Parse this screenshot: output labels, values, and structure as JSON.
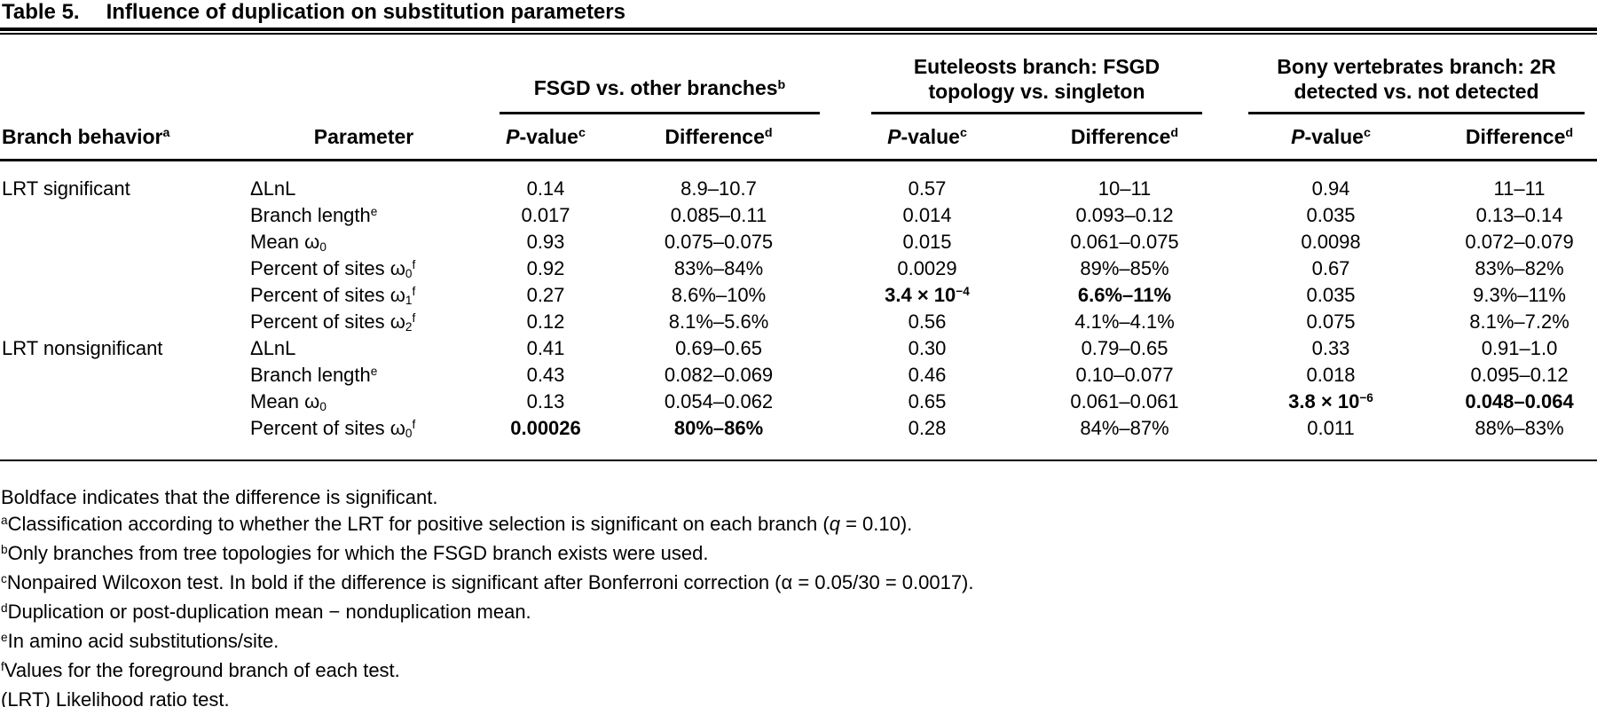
{
  "title": {
    "label": "Table 5.",
    "text": "Influence of duplication on substitution parameters"
  },
  "header": {
    "col1": [
      [
        "t",
        "Branch behavior"
      ],
      [
        "sup",
        "a"
      ]
    ],
    "col2": [
      [
        "t",
        "Parameter"
      ]
    ],
    "groups": [
      {
        "lines": [
          [
            [
              "t",
              "FSGD vs. other branches"
            ],
            [
              "sup",
              "b"
            ]
          ]
        ]
      },
      {
        "lines": [
          [
            [
              "t",
              "Euteleosts branch: FSGD"
            ]
          ],
          [
            [
              "t",
              "topology vs. singleton"
            ]
          ]
        ]
      },
      {
        "lines": [
          [
            [
              "t",
              "Bony vertebrates branch: 2R"
            ]
          ],
          [
            [
              "t",
              "detected vs. not detected"
            ]
          ]
        ]
      }
    ],
    "pvalue": [
      [
        "i",
        "P"
      ],
      [
        "t",
        "-value"
      ],
      [
        "sup",
        "c"
      ]
    ],
    "difference": [
      [
        "t",
        "Difference"
      ],
      [
        "sup",
        "d"
      ]
    ]
  },
  "rows": [
    {
      "behavior": "LRT significant",
      "parameter": [
        [
          "t",
          "ΔLnL"
        ]
      ],
      "values": [
        {
          "s": [
            [
              "t",
              "0.14"
            ]
          ]
        },
        {
          "s": [
            [
              "t",
              "8.9–10.7"
            ]
          ]
        },
        {
          "s": [
            [
              "t",
              "0.57"
            ]
          ]
        },
        {
          "s": [
            [
              "t",
              "10–11"
            ]
          ]
        },
        {
          "s": [
            [
              "t",
              "0.94"
            ]
          ]
        },
        {
          "s": [
            [
              "t",
              "11–11"
            ]
          ]
        }
      ]
    },
    {
      "behavior": "",
      "parameter": [
        [
          "t",
          "Branch length"
        ],
        [
          "sup",
          "e"
        ]
      ],
      "values": [
        {
          "s": [
            [
              "t",
              "0.017"
            ]
          ]
        },
        {
          "s": [
            [
              "t",
              "0.085–0.11"
            ]
          ]
        },
        {
          "s": [
            [
              "t",
              "0.014"
            ]
          ]
        },
        {
          "s": [
            [
              "t",
              "0.093–0.12"
            ]
          ]
        },
        {
          "s": [
            [
              "t",
              "0.035"
            ]
          ]
        },
        {
          "s": [
            [
              "t",
              "0.13–0.14"
            ]
          ]
        }
      ]
    },
    {
      "behavior": "",
      "parameter": [
        [
          "t",
          "Mean ω"
        ],
        [
          "sub",
          "0"
        ]
      ],
      "values": [
        {
          "s": [
            [
              "t",
              "0.93"
            ]
          ]
        },
        {
          "s": [
            [
              "t",
              "0.075–0.075"
            ]
          ]
        },
        {
          "s": [
            [
              "t",
              "0.015"
            ]
          ]
        },
        {
          "s": [
            [
              "t",
              "0.061–0.075"
            ]
          ]
        },
        {
          "s": [
            [
              "t",
              "0.0098"
            ]
          ]
        },
        {
          "s": [
            [
              "t",
              "0.072–0.079"
            ]
          ]
        }
      ]
    },
    {
      "behavior": "",
      "parameter": [
        [
          "t",
          "Percent of sites ω"
        ],
        [
          "sub",
          "0"
        ],
        [
          "sup",
          "f"
        ]
      ],
      "values": [
        {
          "s": [
            [
              "t",
              "0.92"
            ]
          ]
        },
        {
          "s": [
            [
              "t",
              "83%–84%"
            ]
          ]
        },
        {
          "s": [
            [
              "t",
              "0.0029"
            ]
          ]
        },
        {
          "s": [
            [
              "t",
              "89%–85%"
            ]
          ]
        },
        {
          "s": [
            [
              "t",
              "0.67"
            ]
          ]
        },
        {
          "s": [
            [
              "t",
              "83%–82%"
            ]
          ]
        }
      ]
    },
    {
      "behavior": "",
      "parameter": [
        [
          "t",
          "Percent of sites ω"
        ],
        [
          "sub",
          "1"
        ],
        [
          "sup",
          "f"
        ]
      ],
      "values": [
        {
          "s": [
            [
              "t",
              "0.27"
            ]
          ]
        },
        {
          "s": [
            [
              "t",
              "8.6%–10%"
            ]
          ]
        },
        {
          "s": [
            [
              "t",
              "3.4 × 10"
            ],
            [
              "sup",
              "−4"
            ]
          ],
          "bold": true
        },
        {
          "s": [
            [
              "t",
              "6.6%–11%"
            ]
          ],
          "bold": true
        },
        {
          "s": [
            [
              "t",
              "0.035"
            ]
          ]
        },
        {
          "s": [
            [
              "t",
              "9.3%–11%"
            ]
          ]
        }
      ]
    },
    {
      "behavior": "",
      "parameter": [
        [
          "t",
          "Percent of sites ω"
        ],
        [
          "sub",
          "2"
        ],
        [
          "sup",
          "f"
        ]
      ],
      "values": [
        {
          "s": [
            [
              "t",
              "0.12"
            ]
          ]
        },
        {
          "s": [
            [
              "t",
              "8.1%–5.6%"
            ]
          ]
        },
        {
          "s": [
            [
              "t",
              "0.56"
            ]
          ]
        },
        {
          "s": [
            [
              "t",
              "4.1%–4.1%"
            ]
          ]
        },
        {
          "s": [
            [
              "t",
              "0.075"
            ]
          ]
        },
        {
          "s": [
            [
              "t",
              "8.1%–7.2%"
            ]
          ]
        }
      ]
    },
    {
      "behavior": "LRT nonsignificant",
      "parameter": [
        [
          "t",
          "ΔLnL"
        ]
      ],
      "values": [
        {
          "s": [
            [
              "t",
              "0.41"
            ]
          ]
        },
        {
          "s": [
            [
              "t",
              "0.69–0.65"
            ]
          ]
        },
        {
          "s": [
            [
              "t",
              "0.30"
            ]
          ]
        },
        {
          "s": [
            [
              "t",
              "0.79–0.65"
            ]
          ]
        },
        {
          "s": [
            [
              "t",
              "0.33"
            ]
          ]
        },
        {
          "s": [
            [
              "t",
              "0.91–1.0"
            ]
          ]
        }
      ]
    },
    {
      "behavior": "",
      "parameter": [
        [
          "t",
          "Branch length"
        ],
        [
          "sup",
          "e"
        ]
      ],
      "values": [
        {
          "s": [
            [
              "t",
              "0.43"
            ]
          ]
        },
        {
          "s": [
            [
              "t",
              "0.082–0.069"
            ]
          ]
        },
        {
          "s": [
            [
              "t",
              "0.46"
            ]
          ]
        },
        {
          "s": [
            [
              "t",
              "0.10–0.077"
            ]
          ]
        },
        {
          "s": [
            [
              "t",
              "0.018"
            ]
          ]
        },
        {
          "s": [
            [
              "t",
              "0.095–0.12"
            ]
          ]
        }
      ]
    },
    {
      "behavior": "",
      "parameter": [
        [
          "t",
          "Mean ω"
        ],
        [
          "sub",
          "0"
        ]
      ],
      "values": [
        {
          "s": [
            [
              "t",
              "0.13"
            ]
          ]
        },
        {
          "s": [
            [
              "t",
              "0.054–0.062"
            ]
          ]
        },
        {
          "s": [
            [
              "t",
              "0.65"
            ]
          ]
        },
        {
          "s": [
            [
              "t",
              "0.061–0.061"
            ]
          ]
        },
        {
          "s": [
            [
              "t",
              "3.8 × 10"
            ],
            [
              "sup",
              "−6"
            ]
          ],
          "bold": true
        },
        {
          "s": [
            [
              "t",
              "0.048–0.064"
            ]
          ],
          "bold": true
        }
      ]
    },
    {
      "behavior": "",
      "parameter": [
        [
          "t",
          "Percent of sites ω"
        ],
        [
          "sub",
          "0"
        ],
        [
          "sup",
          "f"
        ]
      ],
      "values": [
        {
          "s": [
            [
              "t",
              "0.00026"
            ]
          ],
          "bold": true
        },
        {
          "s": [
            [
              "t",
              "80%–86%"
            ]
          ],
          "bold": true
        },
        {
          "s": [
            [
              "t",
              "0.28"
            ]
          ]
        },
        {
          "s": [
            [
              "t",
              "84%–87%"
            ]
          ]
        },
        {
          "s": [
            [
              "t",
              "0.011"
            ]
          ]
        },
        {
          "s": [
            [
              "t",
              "88%–83%"
            ]
          ]
        }
      ]
    }
  ],
  "footnotes": [
    {
      "s": [
        [
          "t",
          "Boldface indicates that the difference is significant."
        ]
      ]
    },
    {
      "s": [
        [
          "sup",
          "a"
        ],
        [
          "t",
          "Classification according to whether the LRT for positive selection is significant on each branch ("
        ],
        [
          "i",
          "q"
        ],
        [
          "t",
          " = 0.10)."
        ]
      ]
    },
    {
      "s": [
        [
          "sup",
          "b"
        ],
        [
          "t",
          "Only branches from tree topologies for which the FSGD branch exists were used."
        ]
      ]
    },
    {
      "s": [
        [
          "sup",
          "c"
        ],
        [
          "t",
          "Nonpaired Wilcoxon test. In bold if the difference is significant after Bonferroni correction (α = 0.05/30 = 0.0017)."
        ]
      ]
    },
    {
      "s": [
        [
          "sup",
          "d"
        ],
        [
          "t",
          "Duplication or post-duplication mean − nonduplication mean."
        ]
      ]
    },
    {
      "s": [
        [
          "sup",
          "e"
        ],
        [
          "t",
          "In amino acid substitutions/site."
        ]
      ]
    },
    {
      "s": [
        [
          "sup",
          "f"
        ],
        [
          "t",
          "Values for the foreground branch of each test."
        ]
      ]
    },
    {
      "s": [
        [
          "t",
          "(LRT) Likelihood ratio test."
        ]
      ]
    }
  ]
}
